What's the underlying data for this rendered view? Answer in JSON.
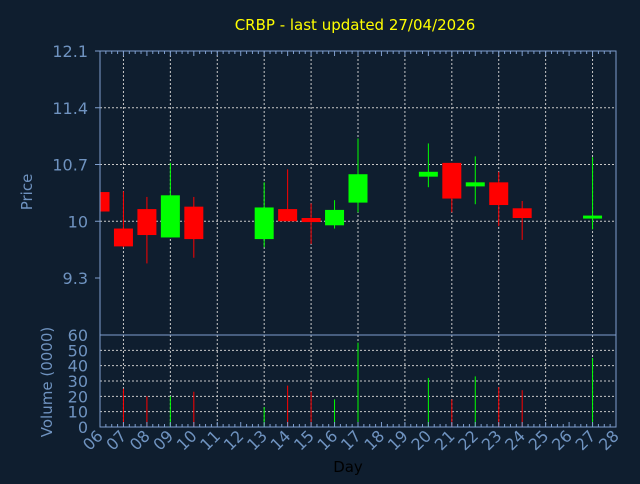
{
  "chart_data": {
    "type": "candlestick",
    "title": "CRBP - last updated 27/04/2026",
    "xlabel": "Day",
    "ylabel": "Price",
    "volume_label": "Volume (0000)",
    "x_ticks": [
      "06",
      "07",
      "08",
      "09",
      "10",
      "11",
      "12",
      "13",
      "14",
      "15",
      "16",
      "17",
      "18",
      "19",
      "20",
      "21",
      "22",
      "23",
      "24",
      "25",
      "26",
      "27",
      "28"
    ],
    "price_ticks": [
      "9.3",
      "10",
      "10.7",
      "11.4",
      "12.1"
    ],
    "price_range": [
      9.3,
      12.1
    ],
    "volume_ticks": [
      "0",
      "10",
      "20",
      "30",
      "40",
      "50",
      "60"
    ],
    "volume_range": [
      0,
      60
    ],
    "grid": true,
    "colors": {
      "up": "#00ff00",
      "down": "#ff0000",
      "title": "#ffff00",
      "axis": "#7f9fcf",
      "background": "#0f1e2f"
    },
    "candles": [
      {
        "day": "06",
        "open": 10.36,
        "high": 10.36,
        "low": 10.12,
        "close": 10.12,
        "volume": 0
      },
      {
        "day": "07",
        "open": 9.91,
        "high": 10.37,
        "low": 9.68,
        "close": 9.69,
        "volume": 25
      },
      {
        "day": "08",
        "open": 10.15,
        "high": 10.3,
        "low": 9.48,
        "close": 9.83,
        "volume": 20
      },
      {
        "day": "09",
        "open": 9.8,
        "high": 10.72,
        "low": 9.8,
        "close": 10.32,
        "volume": 20
      },
      {
        "day": "10",
        "open": 10.18,
        "high": 10.3,
        "low": 9.55,
        "close": 9.78,
        "volume": 23
      },
      {
        "day": "13",
        "open": 9.78,
        "high": 10.48,
        "low": 9.68,
        "close": 10.17,
        "volume": 13
      },
      {
        "day": "14",
        "open": 10.15,
        "high": 10.64,
        "low": 10.0,
        "close": 10.0,
        "volume": 27
      },
      {
        "day": "15",
        "open": 10.04,
        "high": 10.22,
        "low": 9.72,
        "close": 9.99,
        "volume": 23
      },
      {
        "day": "16",
        "open": 9.95,
        "high": 10.26,
        "low": 9.91,
        "close": 10.14,
        "volume": 18
      },
      {
        "day": "17",
        "open": 10.23,
        "high": 11.02,
        "low": 10.11,
        "close": 10.58,
        "volume": 55
      },
      {
        "day": "20",
        "open": 10.55,
        "high": 10.96,
        "low": 10.42,
        "close": 10.61,
        "volume": 32
      },
      {
        "day": "21",
        "open": 10.72,
        "high": 10.72,
        "low": 10.11,
        "close": 10.28,
        "volume": 18
      },
      {
        "day": "22",
        "open": 10.43,
        "high": 10.8,
        "low": 10.21,
        "close": 10.48,
        "volume": 33
      },
      {
        "day": "23",
        "open": 10.48,
        "high": 10.61,
        "low": 9.94,
        "close": 10.2,
        "volume": 26
      },
      {
        "day": "24",
        "open": 10.16,
        "high": 10.25,
        "low": 9.77,
        "close": 10.04,
        "volume": 24
      },
      {
        "day": "27",
        "open": 10.04,
        "high": 10.79,
        "low": 9.9,
        "close": 10.07,
        "volume": 45
      }
    ]
  }
}
